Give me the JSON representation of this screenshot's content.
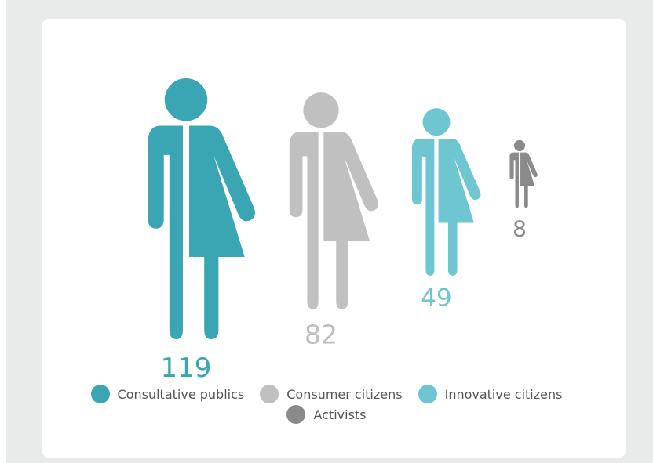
{
  "chart_data": {
    "type": "pictograph",
    "title": "",
    "categories": [
      "Consultative publics",
      "Consumer citizens",
      "Innovative citizens",
      "Activists"
    ],
    "values": [
      119,
      82,
      49,
      8
    ],
    "colors": [
      "#3aa5b3",
      "#c0c0c0",
      "#6ec6d0",
      "#8a8a8a"
    ],
    "value_label_colors": [
      "#3aa5b3",
      "#bdbdbd",
      "#6ec6d0",
      "#8a8a8a"
    ],
    "icon": "person-icon",
    "legend_position": "bottom"
  },
  "legend": [
    {
      "label": "Consultative publics",
      "color": "#3aa5b3"
    },
    {
      "label": "Consumer citizens",
      "color": "#c0c0c0"
    },
    {
      "label": "Innovative citizens",
      "color": "#6ec6d0"
    },
    {
      "label": "Activists",
      "color": "#8a8a8a"
    }
  ]
}
